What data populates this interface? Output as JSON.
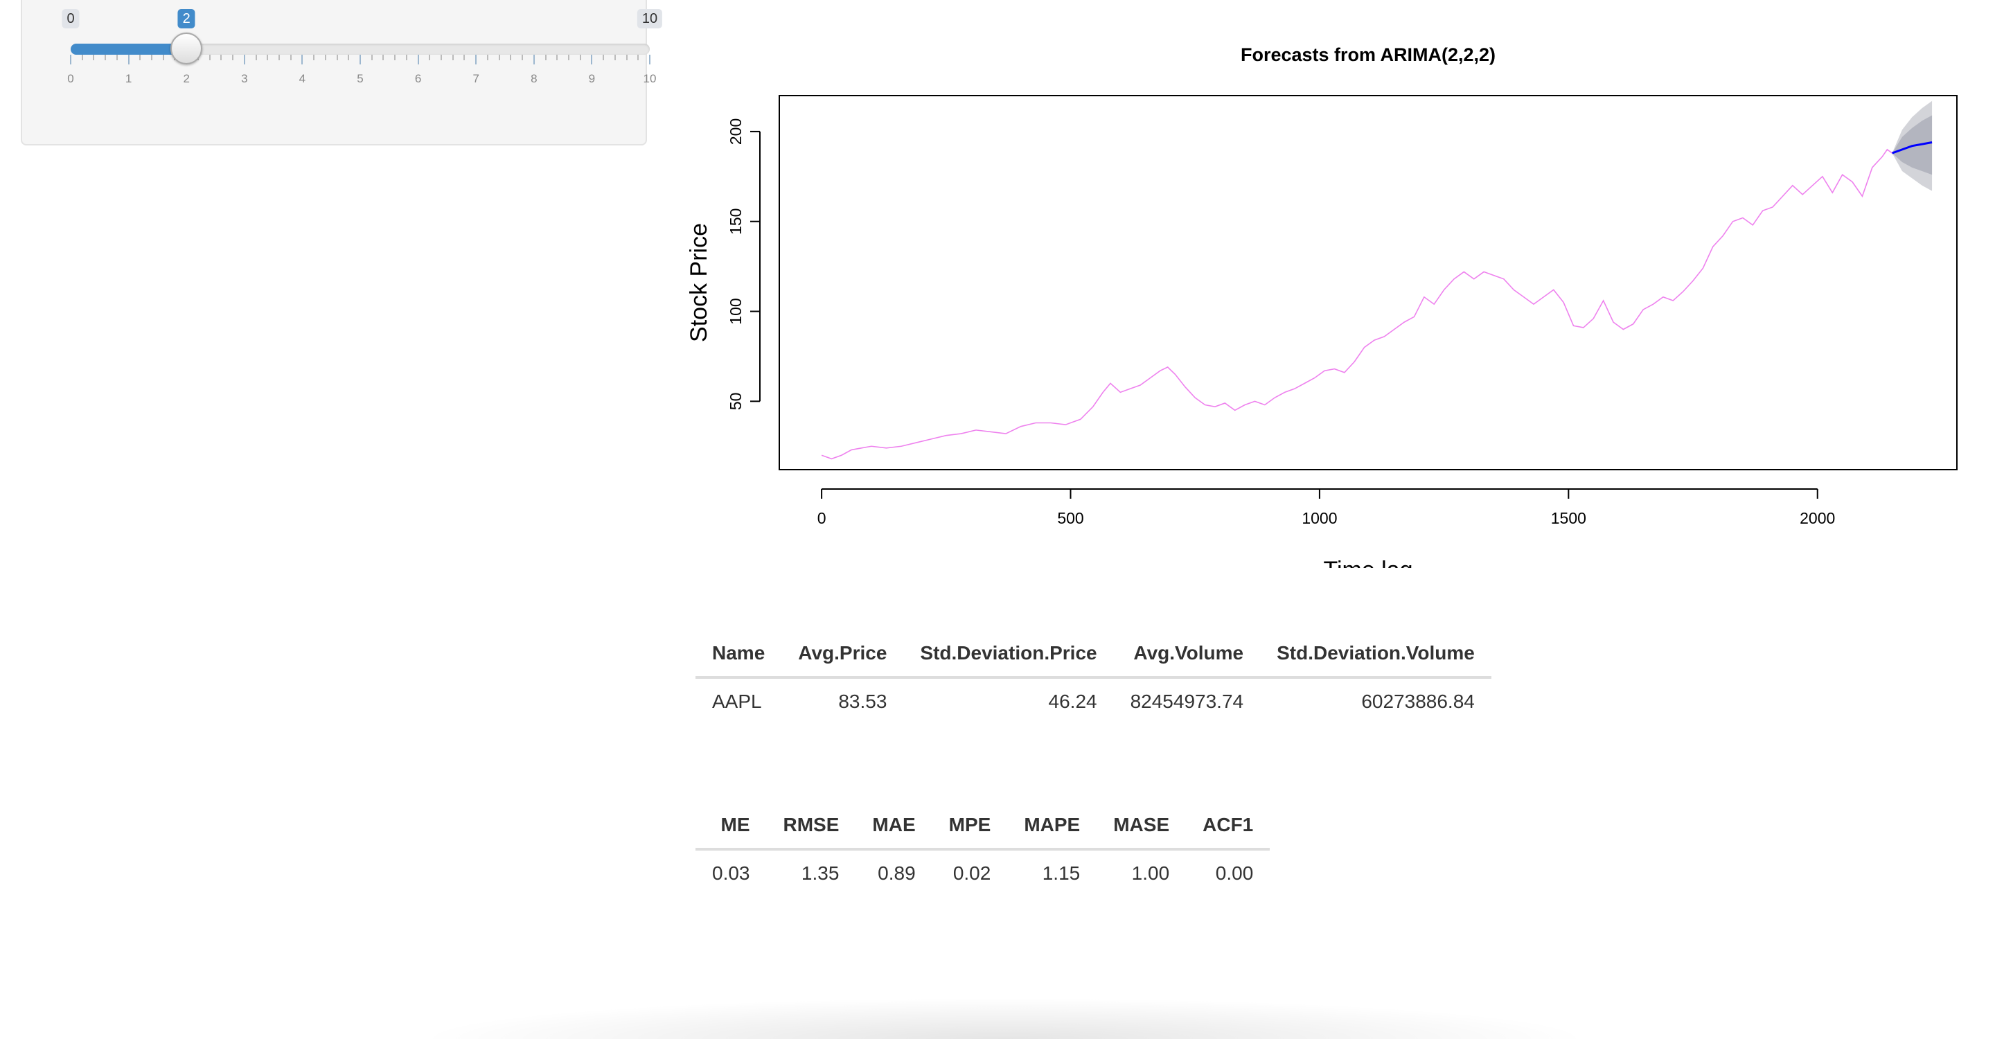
{
  "slider": {
    "min_label": "0",
    "max_label": "10",
    "value_label": "2",
    "min": 0,
    "max": 10,
    "value": 2,
    "ticks": [
      "0",
      "1",
      "2",
      "3",
      "4",
      "5",
      "6",
      "7",
      "8",
      "9",
      "10"
    ]
  },
  "chart_data": {
    "type": "line",
    "title": "Forecasts from ARIMA(2,2,2)",
    "xlabel": "Time lag",
    "ylabel": "Stock Price",
    "x_ticks": [
      0,
      500,
      1000,
      1500,
      2000
    ],
    "y_ticks": [
      50,
      100,
      150,
      200
    ],
    "xlim": [
      -85,
      2280
    ],
    "ylim": [
      12,
      220
    ],
    "series": [
      {
        "color": "#ee82ee",
        "points": [
          [
            0,
            20
          ],
          [
            20,
            18
          ],
          [
            40,
            20
          ],
          [
            60,
            23
          ],
          [
            80,
            24
          ],
          [
            100,
            25
          ],
          [
            130,
            24
          ],
          [
            160,
            25
          ],
          [
            190,
            27
          ],
          [
            220,
            29
          ],
          [
            250,
            31
          ],
          [
            280,
            32
          ],
          [
            310,
            34
          ],
          [
            340,
            33
          ],
          [
            370,
            32
          ],
          [
            400,
            36
          ],
          [
            430,
            38
          ],
          [
            460,
            38
          ],
          [
            490,
            37
          ],
          [
            520,
            40
          ],
          [
            545,
            47
          ],
          [
            565,
            55
          ],
          [
            580,
            60
          ],
          [
            600,
            55
          ],
          [
            620,
            57
          ],
          [
            640,
            59
          ],
          [
            660,
            63
          ],
          [
            680,
            67
          ],
          [
            695,
            69
          ],
          [
            710,
            65
          ],
          [
            730,
            58
          ],
          [
            750,
            52
          ],
          [
            770,
            48
          ],
          [
            790,
            47
          ],
          [
            810,
            49
          ],
          [
            830,
            45
          ],
          [
            850,
            48
          ],
          [
            870,
            50
          ],
          [
            890,
            48
          ],
          [
            910,
            52
          ],
          [
            930,
            55
          ],
          [
            950,
            57
          ],
          [
            970,
            60
          ],
          [
            990,
            63
          ],
          [
            1010,
            67
          ],
          [
            1030,
            68
          ],
          [
            1050,
            66
          ],
          [
            1070,
            72
          ],
          [
            1090,
            80
          ],
          [
            1110,
            84
          ],
          [
            1130,
            86
          ],
          [
            1150,
            90
          ],
          [
            1170,
            94
          ],
          [
            1190,
            97
          ],
          [
            1210,
            108
          ],
          [
            1230,
            104
          ],
          [
            1250,
            112
          ],
          [
            1270,
            118
          ],
          [
            1290,
            122
          ],
          [
            1310,
            118
          ],
          [
            1330,
            122
          ],
          [
            1350,
            120
          ],
          [
            1370,
            118
          ],
          [
            1390,
            112
          ],
          [
            1410,
            108
          ],
          [
            1430,
            104
          ],
          [
            1450,
            108
          ],
          [
            1470,
            112
          ],
          [
            1490,
            105
          ],
          [
            1510,
            92
          ],
          [
            1530,
            91
          ],
          [
            1550,
            96
          ],
          [
            1570,
            106
          ],
          [
            1590,
            94
          ],
          [
            1610,
            90
          ],
          [
            1630,
            93
          ],
          [
            1650,
            101
          ],
          [
            1670,
            104
          ],
          [
            1690,
            108
          ],
          [
            1710,
            106
          ],
          [
            1730,
            111
          ],
          [
            1750,
            117
          ],
          [
            1770,
            124
          ],
          [
            1790,
            136
          ],
          [
            1810,
            142
          ],
          [
            1830,
            150
          ],
          [
            1850,
            152
          ],
          [
            1870,
            148
          ],
          [
            1890,
            156
          ],
          [
            1910,
            158
          ],
          [
            1930,
            164
          ],
          [
            1950,
            170
          ],
          [
            1970,
            165
          ],
          [
            1990,
            170
          ],
          [
            2010,
            175
          ],
          [
            2030,
            166
          ],
          [
            2050,
            176
          ],
          [
            2070,
            172
          ],
          [
            2090,
            164
          ],
          [
            2110,
            180
          ],
          [
            2130,
            186
          ],
          [
            2140,
            190
          ],
          [
            2150,
            188
          ]
        ]
      },
      {
        "name": "forecast",
        "color": "#0000ff",
        "points": [
          [
            2150,
            188
          ],
          [
            2170,
            190
          ],
          [
            2190,
            192
          ],
          [
            2210,
            193
          ],
          [
            2230,
            194
          ]
        ],
        "band80": [
          [
            2150,
            188,
            188
          ],
          [
            2170,
            183,
            197
          ],
          [
            2190,
            180,
            202
          ],
          [
            2210,
            178,
            206
          ],
          [
            2230,
            176,
            209
          ]
        ],
        "band95": [
          [
            2150,
            188,
            188
          ],
          [
            2170,
            178,
            201
          ],
          [
            2190,
            174,
            208
          ],
          [
            2210,
            170,
            213
          ],
          [
            2230,
            167,
            217
          ]
        ]
      }
    ],
    "grid": false
  },
  "summary": {
    "headers": [
      "Name",
      "Avg.Price",
      "Std.Deviation.Price",
      "Avg.Volume",
      "Std.Deviation.Volume"
    ],
    "rows": [
      [
        "AAPL",
        "83.53",
        "46.24",
        "82454973.74",
        "60273886.84"
      ]
    ]
  },
  "accuracy": {
    "headers": [
      "ME",
      "RMSE",
      "MAE",
      "MPE",
      "MAPE",
      "MASE",
      "ACF1"
    ],
    "rows": [
      [
        "0.03",
        "1.35",
        "0.89",
        "0.02",
        "1.15",
        "1.00",
        "0.00"
      ]
    ]
  }
}
